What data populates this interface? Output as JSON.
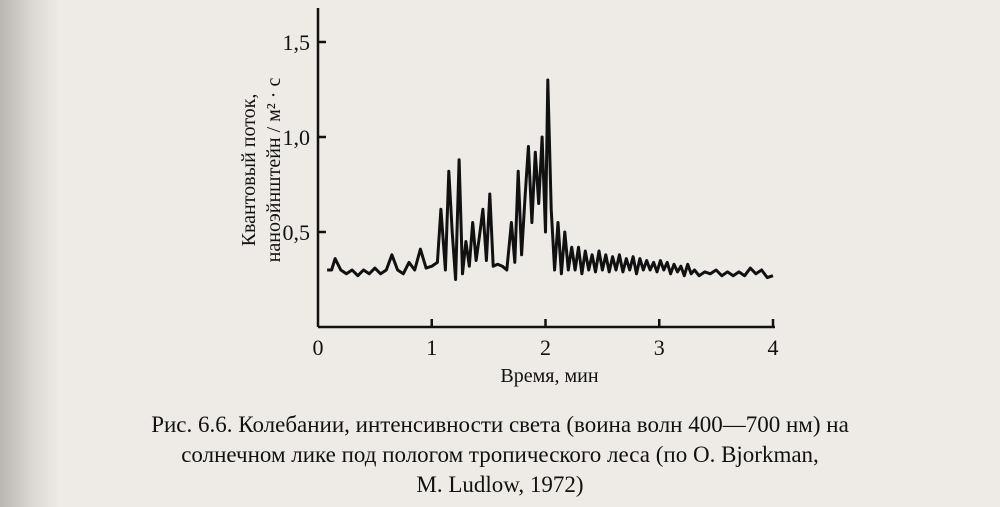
{
  "chart_data": {
    "type": "line",
    "xlabel": "Время, мин",
    "ylabel_line1": "Квантовый поток,",
    "ylabel_line2": "наноэйнштейн / м² · с",
    "xlim": [
      0,
      4
    ],
    "ylim": [
      0,
      1.7
    ],
    "x_ticks": [
      0,
      1,
      2,
      3,
      4
    ],
    "x_tick_labels": [
      "0",
      "1",
      "2",
      "3",
      "4"
    ],
    "y_ticks": [
      0.5,
      1.0,
      1.5
    ],
    "y_tick_labels": [
      "0,5",
      "1,0",
      "1,5"
    ],
    "grid": false,
    "series": [
      {
        "x": [
          0.08,
          0.12,
          0.15,
          0.2,
          0.25,
          0.3,
          0.35,
          0.4,
          0.45,
          0.5,
          0.55,
          0.6,
          0.65,
          0.7,
          0.75,
          0.8,
          0.85,
          0.9,
          0.95,
          1.0,
          1.05,
          1.08,
          1.12,
          1.15,
          1.18,
          1.21,
          1.24,
          1.27,
          1.3,
          1.33,
          1.36,
          1.39,
          1.42,
          1.45,
          1.48,
          1.51,
          1.54,
          1.58,
          1.62,
          1.66,
          1.7,
          1.73,
          1.76,
          1.79,
          1.82,
          1.85,
          1.88,
          1.91,
          1.94,
          1.97,
          2.0,
          2.02,
          2.05,
          2.08,
          2.11,
          2.14,
          2.17,
          2.2,
          2.23,
          2.26,
          2.29,
          2.32,
          2.35,
          2.38,
          2.41,
          2.44,
          2.47,
          2.5,
          2.53,
          2.56,
          2.59,
          2.62,
          2.65,
          2.68,
          2.71,
          2.74,
          2.77,
          2.8,
          2.83,
          2.86,
          2.89,
          2.92,
          2.95,
          2.98,
          3.01,
          3.04,
          3.07,
          3.1,
          3.13,
          3.16,
          3.19,
          3.22,
          3.25,
          3.28,
          3.31,
          3.35,
          3.4,
          3.45,
          3.5,
          3.55,
          3.6,
          3.65,
          3.7,
          3.75,
          3.8,
          3.85,
          3.9,
          3.95,
          4.0
        ],
        "values": [
          0.3,
          0.3,
          0.36,
          0.3,
          0.28,
          0.3,
          0.27,
          0.3,
          0.28,
          0.31,
          0.28,
          0.3,
          0.38,
          0.3,
          0.28,
          0.34,
          0.3,
          0.41,
          0.31,
          0.32,
          0.34,
          0.62,
          0.3,
          0.82,
          0.5,
          0.25,
          0.88,
          0.28,
          0.45,
          0.32,
          0.55,
          0.35,
          0.48,
          0.62,
          0.35,
          0.7,
          0.32,
          0.33,
          0.32,
          0.3,
          0.55,
          0.34,
          0.82,
          0.38,
          0.68,
          0.95,
          0.55,
          0.92,
          0.65,
          1.0,
          0.5,
          1.3,
          0.62,
          0.3,
          0.55,
          0.28,
          0.5,
          0.3,
          0.42,
          0.3,
          0.42,
          0.28,
          0.4,
          0.3,
          0.38,
          0.29,
          0.4,
          0.3,
          0.38,
          0.29,
          0.37,
          0.3,
          0.38,
          0.29,
          0.36,
          0.3,
          0.37,
          0.28,
          0.36,
          0.3,
          0.35,
          0.3,
          0.34,
          0.29,
          0.35,
          0.3,
          0.34,
          0.28,
          0.33,
          0.29,
          0.32,
          0.27,
          0.33,
          0.28,
          0.3,
          0.27,
          0.29,
          0.28,
          0.3,
          0.27,
          0.29,
          0.27,
          0.29,
          0.27,
          0.31,
          0.28,
          0.3,
          0.26,
          0.27
        ]
      }
    ]
  },
  "caption": {
    "line1": "Рис. 6.6. Колебании, интенсивности света (воина волн 400—700 нм) на",
    "line2": "солнечном  лике  под пологом тропического леса (по O. Bjorkman,",
    "line3": "M. Ludlow, 1972)"
  }
}
